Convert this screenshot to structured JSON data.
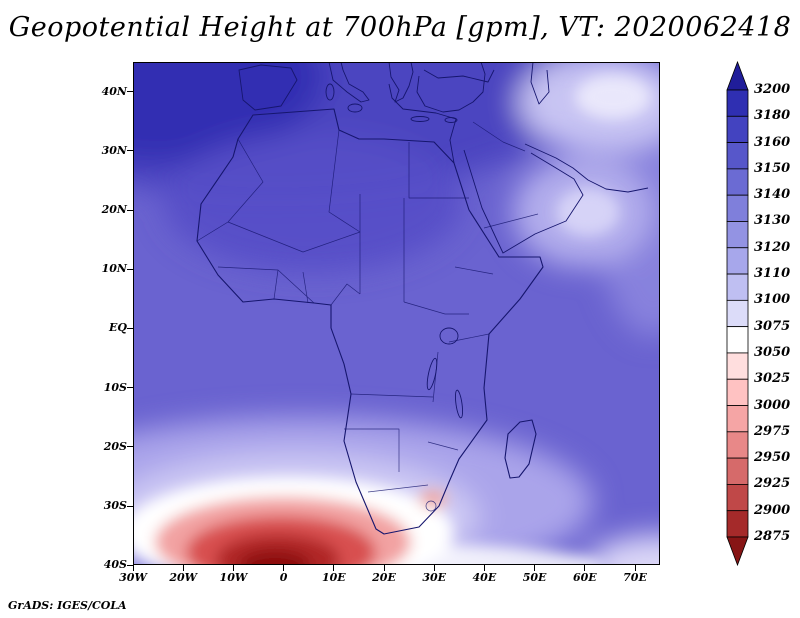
{
  "title": "Geopotential Height at 700hPa [gpm], VT: 2020062418",
  "credit": "GrADS: IGES/COLA",
  "map": {
    "region": "Africa and surroundings",
    "lat_ticks": [
      "40N",
      "30N",
      "20N",
      "10N",
      "EQ",
      "10S",
      "20S",
      "30S",
      "40S"
    ],
    "lon_ticks": [
      "30W",
      "20W",
      "10W",
      "0",
      "10E",
      "20E",
      "30E",
      "40E",
      "50E",
      "60E",
      "70E"
    ]
  },
  "colorbar": {
    "labels": [
      "3200",
      "3180",
      "3160",
      "3150",
      "3140",
      "3130",
      "3120",
      "3110",
      "3100",
      "3075",
      "3050",
      "3025",
      "3000",
      "2975",
      "2950",
      "2925",
      "2900",
      "2875"
    ],
    "colors": [
      "#201d9a",
      "#2f2fb2",
      "#4343c0",
      "#5757ca",
      "#6b6bd3",
      "#7f7fdb",
      "#9393e3",
      "#a7a7eb",
      "#bfbff2",
      "#dcdcf9",
      "#ffffff",
      "#ffdede",
      "#ffc2c2",
      "#f5a5a5",
      "#e88888",
      "#d66a6a",
      "#c04848",
      "#a52a2a",
      "#871515"
    ]
  },
  "chart_data": {
    "type": "heatmap",
    "title": "Geopotential Height at 700hPa [gpm], VT: 2020062418",
    "variable": "Geopotential Height",
    "level": "700hPa",
    "units": "gpm",
    "valid_time": "2020062418",
    "x": {
      "label": "longitude",
      "range": [
        "30W",
        "75E"
      ],
      "ticks": [
        "30W",
        "20W",
        "10W",
        "0",
        "10E",
        "20E",
        "30E",
        "40E",
        "50E",
        "60E",
        "70E"
      ]
    },
    "y": {
      "label": "latitude",
      "range": [
        "40S",
        "45N"
      ],
      "ticks": [
        "40N",
        "30N",
        "20N",
        "10N",
        "EQ",
        "10S",
        "20S",
        "30S",
        "40S"
      ]
    },
    "contour_levels": [
      2875,
      2900,
      2925,
      2950,
      2975,
      3000,
      3025,
      3050,
      3075,
      3100,
      3110,
      3120,
      3130,
      3140,
      3150,
      3160,
      3180,
      3200
    ],
    "legend_position": "right",
    "notes": "Shaded field: high values (blue, ~3120-3200 gpm) over most of the domain; minimum (dark red, <2875 gpm) centered near 5E, 38S south of the Cape; light band near 25-35S; generated with GrADS"
  }
}
